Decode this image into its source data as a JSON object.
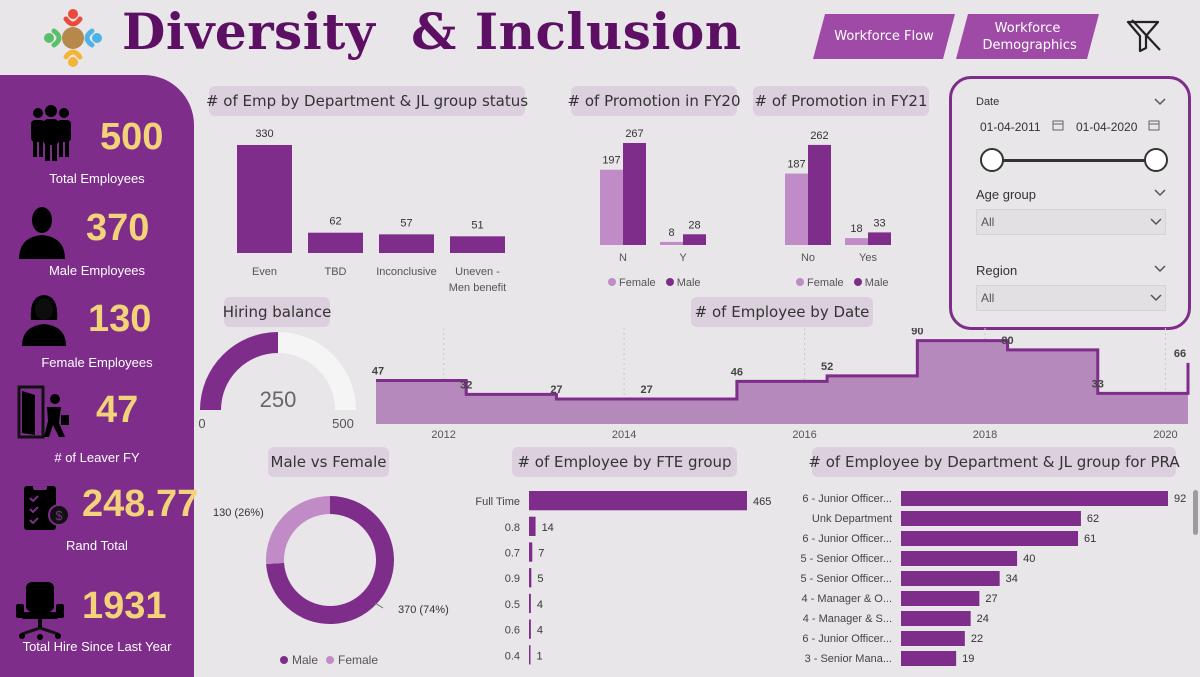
{
  "header": {
    "title": "Diversity  & Inclusion",
    "nav": [
      {
        "label": "Workforce Flow"
      },
      {
        "label": "Workforce Demographics"
      }
    ],
    "icons": {
      "logo": "people-circle-icon",
      "clear_filters": "filter-clear-icon"
    }
  },
  "kpis": [
    {
      "value": "500",
      "label": "Total Employees",
      "icon": "group-icon"
    },
    {
      "value": "370",
      "label": "Male Employees",
      "icon": "male-icon"
    },
    {
      "value": "130",
      "label": "Female Employees",
      "icon": "female-icon"
    },
    {
      "value": "47",
      "label": "# of Leaver  FY",
      "icon": "door-exit-icon"
    },
    {
      "value": "248.77",
      "label": "Rand Total",
      "icon": "clipboard-money-icon"
    },
    {
      "value": "1931",
      "label": "Total Hire Since Last Year",
      "icon": "office-chair-icon"
    }
  ],
  "filters": {
    "date": {
      "label": "Date",
      "start": "01-04-2011",
      "end": "01-04-2020",
      "range_fraction": [
        0.0,
        1.0
      ]
    },
    "age_group": {
      "label": "Age group",
      "value": "All"
    },
    "region": {
      "label": "Region",
      "value": "All"
    }
  },
  "titles": {
    "dept_jl": "# of Emp by Department & JL group status",
    "promo_fy20": "# of Promotion in FY20",
    "promo_fy21": "# of Promotion in FY21",
    "hiring": "Hiring balance",
    "emp_by_date": "# of Employee by Date",
    "male_female": "Male vs Female",
    "fte": "# of Employee by FTE group",
    "dept_pra": "# of Employee by Department & JL group for PRA"
  },
  "legend": {
    "female": "Female",
    "male": "Male"
  },
  "colors": {
    "primary": "#7e2d8a",
    "light": "#c08bc6",
    "area": "#b589bb",
    "kpi_value": "#f3d37a",
    "title": "#5c0f63"
  },
  "chart_data": [
    {
      "id": "dept_jl",
      "type": "bar",
      "categories": [
        "Even",
        "TBD",
        "Inconclusive",
        "Uneven - Men benefit"
      ],
      "values": [
        330,
        62,
        57,
        51
      ]
    },
    {
      "id": "promo_fy20",
      "type": "bar",
      "categories": [
        "N",
        "Y"
      ],
      "series": [
        {
          "name": "Female",
          "values": [
            197,
            8
          ]
        },
        {
          "name": "Male",
          "values": [
            267,
            28
          ]
        }
      ]
    },
    {
      "id": "promo_fy21",
      "type": "bar",
      "categories": [
        "No",
        "Yes"
      ],
      "series": [
        {
          "name": "Female",
          "values": [
            187,
            18
          ]
        },
        {
          "name": "Male",
          "values": [
            262,
            33
          ]
        }
      ]
    },
    {
      "id": "hiring",
      "type": "gauge",
      "value": 250,
      "min": 0,
      "max": 500,
      "min_label": "0",
      "max_label": "500",
      "value_label": "250"
    },
    {
      "id": "emp_by_date",
      "type": "area",
      "x_ticks": [
        "2012",
        "2014",
        "2016",
        "2018",
        "2020"
      ],
      "x_range": [
        2011.25,
        2020.25
      ],
      "ylim": [
        0,
        95
      ],
      "points": [
        {
          "x": 2011.25,
          "y": 47
        },
        {
          "x": 2012.25,
          "y": 32
        },
        {
          "x": 2013.25,
          "y": 27
        },
        {
          "x": 2014.25,
          "y": 27
        },
        {
          "x": 2015.25,
          "y": 46
        },
        {
          "x": 2016.25,
          "y": 52
        },
        {
          "x": 2017.25,
          "y": 90
        },
        {
          "x": 2018.25,
          "y": 80
        },
        {
          "x": 2019.25,
          "y": 33
        },
        {
          "x": 2020.25,
          "y": 66
        }
      ]
    },
    {
      "id": "male_female",
      "type": "pie",
      "slices": [
        {
          "name": "Male",
          "value": 370,
          "label": "370 (74%)"
        },
        {
          "name": "Female",
          "value": 130,
          "label": "130 (26%)"
        }
      ]
    },
    {
      "id": "fte",
      "type": "bar",
      "orientation": "horizontal",
      "categories": [
        "Full Time",
        "0.8",
        "0.7",
        "0.9",
        "0.5",
        "0.6",
        "0.4"
      ],
      "values": [
        465,
        14,
        7,
        5,
        4,
        4,
        1
      ]
    },
    {
      "id": "dept_pra",
      "type": "bar",
      "orientation": "horizontal",
      "categories": [
        "6 - Junior Officer...",
        "Unk Department",
        "6 - Junior Officer...",
        "5 - Senior Officer...",
        "5 - Senior Officer...",
        "4 - Manager & O...",
        "4 - Manager & S...",
        "6 - Junior Officer...",
        "3 - Senior Mana..."
      ],
      "values": [
        92,
        62,
        61,
        40,
        34,
        27,
        24,
        22,
        19
      ]
    }
  ]
}
